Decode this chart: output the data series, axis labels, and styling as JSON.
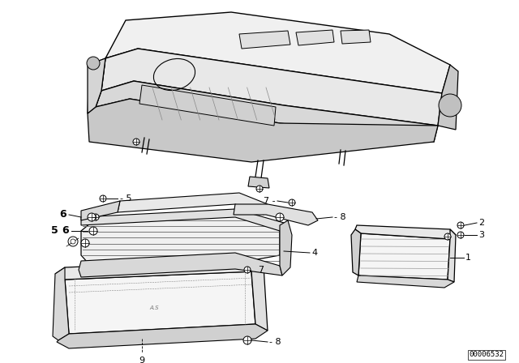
{
  "background_color": "#ffffff",
  "line_color": "#000000",
  "diagram_id": "00006532",
  "fig_width": 6.4,
  "fig_height": 4.48,
  "dpi": 100
}
